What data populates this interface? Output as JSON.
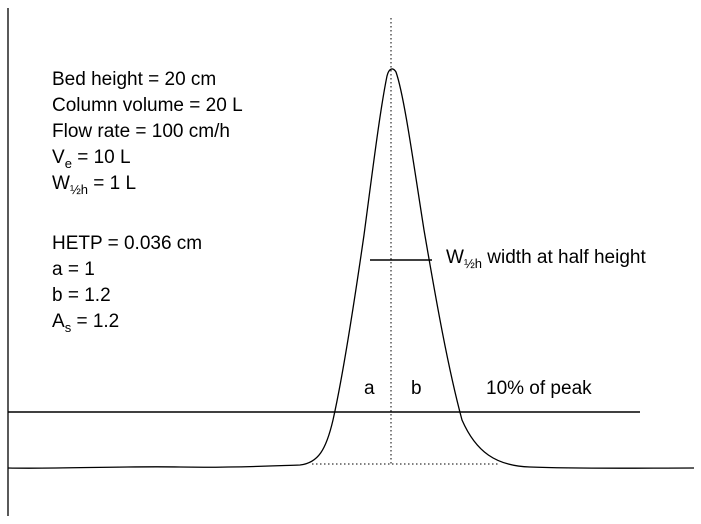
{
  "parameters": {
    "bed_height": "Bed height = 20 cm",
    "column_volume": "Column volume = 20 L",
    "flow_rate": "Flow rate = 100 cm/h",
    "ve": {
      "symbol": "V",
      "subscript": "e",
      "rest": " = 10 L"
    },
    "w_half_h": {
      "symbol": "W",
      "subscript": "½h",
      "rest": " = 1 L"
    },
    "hetp": "HETP = 0.036 cm",
    "a": "a = 1",
    "b": "b = 1.2",
    "as": {
      "symbol": "A",
      "subscript": "s",
      "rest": " = 1.2"
    }
  },
  "labels": {
    "half_height": {
      "symbol": "W",
      "subscript": "½h",
      "rest": " width at half height"
    },
    "a": "a",
    "b": "b",
    "ten_percent": "10% of peak"
  },
  "colors": {
    "line": "#000000",
    "background": "#ffffff"
  }
}
